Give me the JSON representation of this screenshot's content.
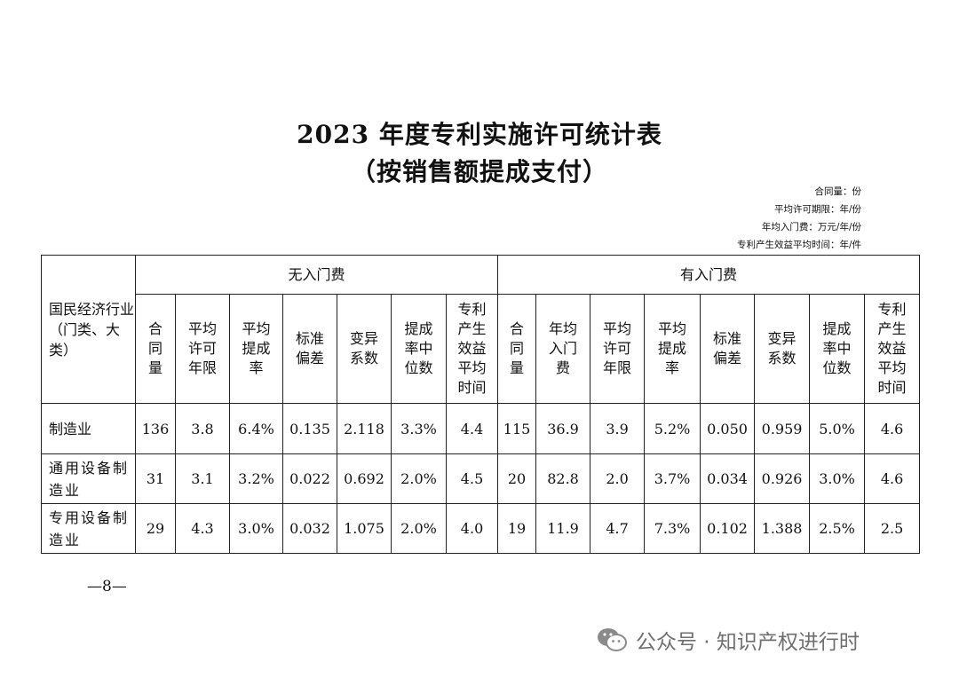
{
  "title_line1": "2023 年度专利实施许可统计表",
  "title_line2": "（按销售额提成支付）",
  "units": [
    "合同量：份",
    "平均许可期限：年/份",
    "年均入门费：万元/年/份",
    "专利产生效益平均时间：年/件"
  ],
  "table": {
    "corner_header": "国民经济行业（门类、大类）",
    "group_no_fee": "无入门费",
    "group_with_fee": "有入门费",
    "cols_no_fee": [
      "合同量",
      "平均许可年限",
      "平均提成率",
      "标准偏差",
      "变异系数",
      "提成率中位数",
      "专利产生效益平均时间"
    ],
    "cols_with_fee": [
      "合同量",
      "年均入门费",
      "平均许可年限",
      "平均提成率",
      "标准偏差",
      "变异系数",
      "提成率中位数",
      "专利产生效益平均时间"
    ],
    "rows": [
      {
        "name": "制造业",
        "values": [
          "136",
          "3.8",
          "6.4%",
          "0.135",
          "2.118",
          "3.3%",
          "4.4",
          "115",
          "36.9",
          "3.9",
          "5.2%",
          "0.050",
          "0.959",
          "5.0%",
          "4.6"
        ]
      },
      {
        "name": "通用设备制造业",
        "values": [
          "31",
          "3.1",
          "3.2%",
          "0.022",
          "0.692",
          "2.0%",
          "4.5",
          "20",
          "82.8",
          "2.0",
          "3.7%",
          "0.034",
          "0.926",
          "3.0%",
          "4.6"
        ]
      },
      {
        "name": "专用设备制造业",
        "values": [
          "29",
          "4.3",
          "3.0%",
          "0.032",
          "1.075",
          "2.0%",
          "4.0",
          "19",
          "11.9",
          "4.7",
          "7.3%",
          "0.102",
          "1.388",
          "2.5%",
          "2.5"
        ]
      }
    ]
  },
  "page_number": "—8—",
  "watermark": {
    "icon": "wechat-icon",
    "text": "公众号 · 知识产权进行时"
  }
}
